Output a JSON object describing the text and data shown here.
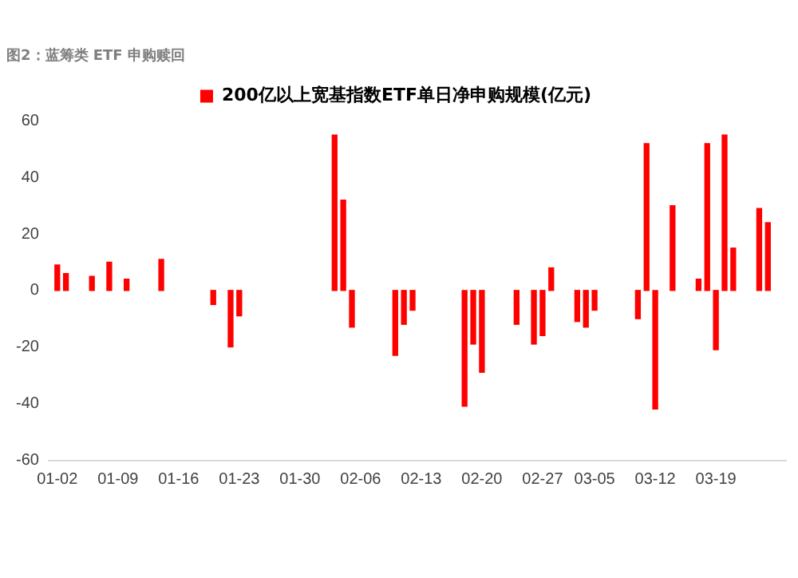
{
  "chart_data": {
    "type": "bar",
    "title": "图2：蓝筹类 ETF 申购赎回",
    "x": [
      "--01-02",
      "--01-03",
      "--01-06",
      "--01-08",
      "--01-10",
      "--01-14",
      "--01-20",
      "--01-22",
      "--01-23",
      "--02-03",
      "--02-04",
      "--02-05",
      "--02-10",
      "--02-11",
      "--02-12",
      "--02-18",
      "--02-19",
      "--02-20",
      "--02-24",
      "--02-26",
      "--02-27",
      "--02-28",
      "--03-03",
      "--03-04",
      "--03-05",
      "--03-10",
      "--03-11",
      "--03-12",
      "--03-14",
      "--03-17",
      "--03-18",
      "--03-19",
      "--03-20",
      "--03-21",
      "--03-24",
      "--03-25"
    ],
    "series": [
      {
        "name": "200亿以上宽基指数ETF单日净申购规模(亿元)",
        "color": "#ff0000",
        "values": [
          9,
          6,
          5,
          10,
          4,
          11,
          -5,
          -20,
          -9,
          55,
          32,
          -13,
          -23,
          -12,
          -7,
          -41,
          -19,
          -29,
          -12,
          -19,
          -16,
          8,
          -11,
          -13,
          -7,
          -10,
          52,
          -42,
          30,
          4,
          52,
          -21,
          55,
          15,
          29,
          24
        ]
      }
    ],
    "xlim": [
      "--01-01",
      "--03-27"
    ],
    "xticks": [
      {
        "value": "--01-02",
        "label": "01-02"
      },
      {
        "value": "--01-09",
        "label": "01-09"
      },
      {
        "value": "--01-16",
        "label": "01-16"
      },
      {
        "value": "--01-23",
        "label": "01-23"
      },
      {
        "value": "--01-30",
        "label": "01-30"
      },
      {
        "value": "--02-06",
        "label": "02-06"
      },
      {
        "value": "--02-13",
        "label": "02-13"
      },
      {
        "value": "--02-20",
        "label": "02-20"
      },
      {
        "value": "--02-27",
        "label": "02-27"
      },
      {
        "value": "--03-05",
        "label": "03-05"
      },
      {
        "value": "--03-12",
        "label": "03-12"
      },
      {
        "value": "--03-19",
        "label": "03-19"
      }
    ],
    "ylim": [
      -60,
      60
    ],
    "yticks": [
      -60,
      -40,
      -20,
      0,
      20,
      40,
      60
    ],
    "grid": false,
    "legend": "top"
  }
}
